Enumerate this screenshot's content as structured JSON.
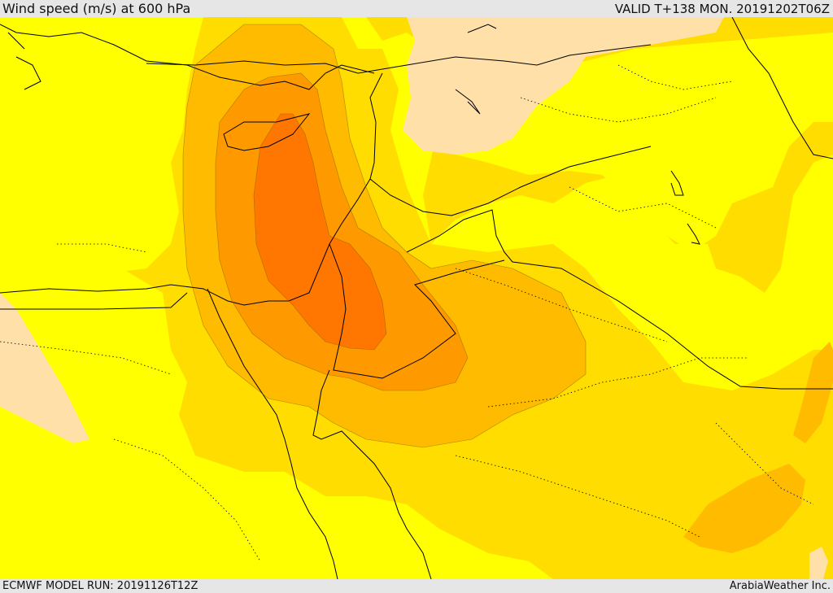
{
  "header": {
    "title": "Wind speed (m/s) at 600 hPa",
    "valid": "VALID T+138 MON. 20191202T06Z"
  },
  "footer": {
    "model_run": "ECMWF MODEL RUN: 20191126T12Z",
    "credit": "ArabiaWeather Inc."
  },
  "map": {
    "colors": {
      "band_lowest": "#ffff00",
      "band_low": "#ffdd00",
      "band_mid": "#ffbb00",
      "band_high": "#ff9900",
      "band_highest": "#ff7700",
      "calm_pale": "#ffe0a8",
      "borders": "#000000"
    }
  }
}
